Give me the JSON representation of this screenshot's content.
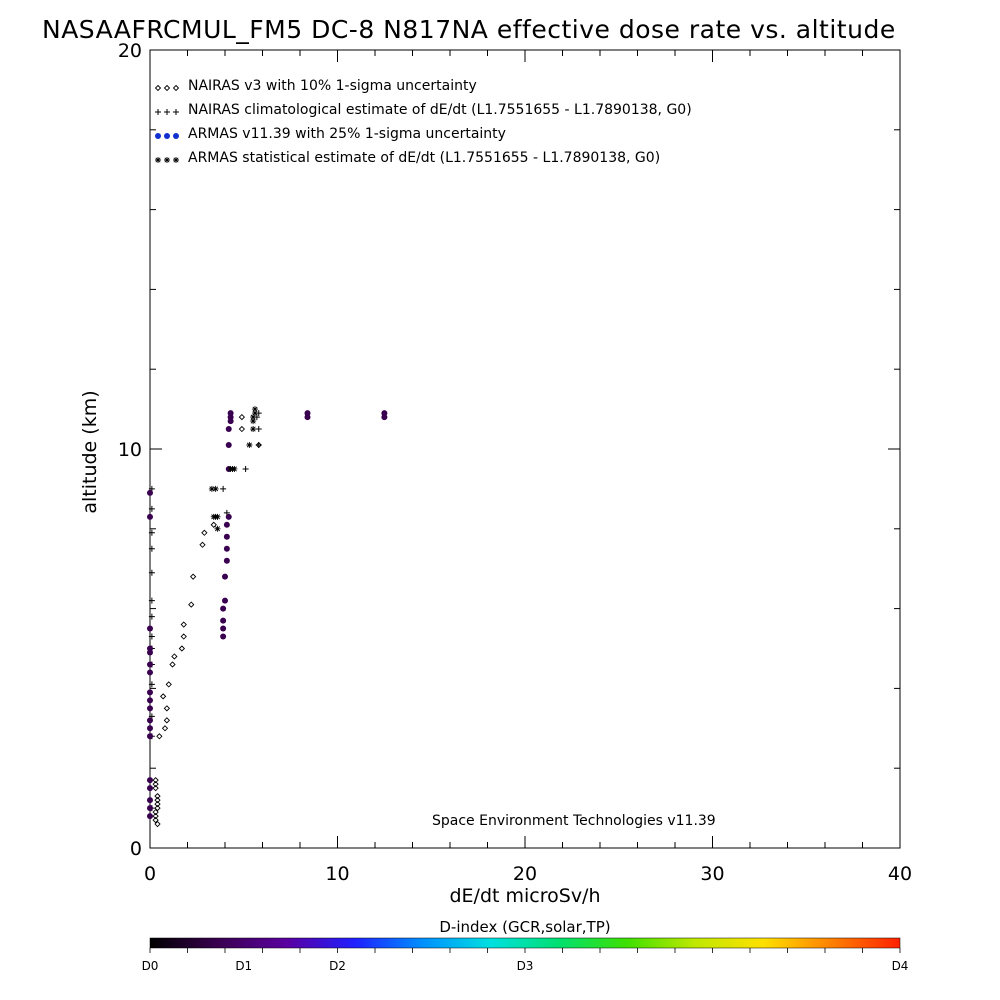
{
  "chart_data": {
    "type": "scatter",
    "title": "NASAAFRCMUL_FM5 DC-8   N817NA effective dose rate vs. altitude",
    "xlabel": "dE/dt microSv/h",
    "ylabel": "altitude (km)",
    "xlim": [
      0,
      40
    ],
    "ylim": [
      0,
      20
    ],
    "x_ticks": [
      "0",
      "10",
      "20",
      "30",
      "40"
    ],
    "y_ticks": [
      "0",
      "10",
      "20"
    ],
    "grid": false,
    "legend_placement": "top-left",
    "legend": [
      {
        "label": "NAIRAS v3 with 10% 1-sigma uncertainty",
        "marker": "diamond",
        "symbol": "◇◇◇"
      },
      {
        "label": "NAIRAS climatological estimate of dE/dt (L1.7551655 - L1.7890138, G0)",
        "marker": "plus",
        "symbol": "+++"
      },
      {
        "label": "ARMAS v11.39 with 25% 1-sigma uncertainty",
        "marker": "dot",
        "symbol": "●●●"
      },
      {
        "label": "ARMAS statistical estimate of dE/dt (L1.7551655 - L1.7890138, G0)",
        "marker": "asterisk",
        "symbol": "***"
      }
    ],
    "annotation": "Space Environment Technologies v11.39",
    "series": [
      {
        "name": "NAIRAS v3 with 10% 1-sigma uncertainty",
        "marker": "diamond",
        "color": "#000000",
        "x": [
          0.3,
          0.3,
          0.3,
          0.4,
          0.4,
          0.4,
          0.3,
          0.3,
          0.3,
          0.4,
          0.4,
          0.5,
          0.8,
          0.9,
          0.9,
          0.7,
          1.0,
          1.2,
          1.3,
          1.7,
          1.8,
          1.8,
          2.2,
          2.3,
          2.8,
          2.9,
          3.4,
          4.9,
          4.9,
          5.8
        ],
        "y": [
          1.7,
          1.6,
          1.5,
          1.3,
          1.1,
          1.0,
          0.9,
          0.8,
          0.7,
          0.6,
          1.2,
          2.8,
          3.0,
          3.2,
          3.5,
          3.8,
          4.1,
          4.6,
          4.8,
          5.0,
          5.3,
          5.6,
          6.1,
          6.8,
          7.6,
          7.9,
          8.1,
          10.8,
          10.5,
          10.1
        ]
      },
      {
        "name": "NAIRAS climatological estimate of dE/dt (L1.7551655 - L1.7890138, G0)",
        "marker": "plus",
        "color": "#000000",
        "x": [
          0.1,
          0.1,
          0.1,
          0.1,
          0.1,
          0.1,
          0.1,
          0.1,
          0.1,
          0.1,
          0.1,
          0.1,
          0.1,
          0.1,
          3.9,
          4.1,
          5.1,
          5.8,
          5.8,
          5.7,
          5.8
        ],
        "y": [
          2.8,
          3.3,
          4.1,
          4.6,
          5.0,
          5.3,
          5.8,
          6.2,
          6.9,
          7.5,
          7.9,
          8.5,
          9.0,
          1.0,
          9.0,
          8.4,
          9.5,
          10.1,
          10.5,
          10.8,
          10.9
        ]
      },
      {
        "name": "ARMAS v11.39 with 25% 1-sigma uncertainty",
        "marker": "dot",
        "color": "#3a0050",
        "x": [
          0.0,
          0.0,
          0.0,
          0.0,
          0.0,
          0.0,
          0.0,
          0.0,
          0.0,
          0.0,
          0.0,
          0.0,
          0.0,
          0.0,
          0.0,
          0.0,
          0.0,
          0.0,
          3.9,
          3.9,
          3.9,
          3.9,
          4.0,
          4.0,
          4.1,
          4.1,
          4.1,
          4.1,
          4.2,
          4.2,
          4.2,
          4.2,
          4.3,
          4.3,
          4.3,
          8.4,
          8.4,
          12.5,
          12.5
        ],
        "y": [
          0.8,
          1.0,
          1.2,
          1.5,
          1.7,
          2.8,
          3.0,
          3.2,
          3.5,
          3.7,
          3.9,
          4.4,
          4.6,
          4.9,
          5.0,
          5.5,
          8.3,
          8.9,
          5.3,
          5.5,
          5.7,
          6.0,
          6.2,
          6.8,
          7.2,
          7.5,
          7.8,
          8.1,
          8.3,
          9.5,
          10.1,
          10.5,
          10.7,
          10.8,
          10.9,
          10.8,
          10.9,
          10.8,
          10.9
        ]
      },
      {
        "name": "ARMAS statistical estimate of dE/dt (L1.7551655 - L1.7890138, G0)",
        "marker": "asterisk",
        "color": "#000000",
        "x": [
          3.3,
          3.4,
          3.5,
          3.6,
          3.5,
          3.6,
          4.3,
          4.4,
          4.5,
          5.3,
          5.5,
          5.5,
          5.5,
          5.6,
          5.6
        ],
        "y": [
          9.0,
          8.3,
          8.3,
          8.3,
          9.0,
          8.0,
          9.5,
          9.5,
          9.5,
          10.1,
          10.5,
          10.7,
          10.8,
          10.9,
          11.0
        ]
      }
    ],
    "colorbar": {
      "title": "D-index (GCR,solar,TP)",
      "ticks": [
        {
          "label": "D0",
          "frac": 0.0
        },
        {
          "label": "D1",
          "frac": 0.125
        },
        {
          "label": "D2",
          "frac": 0.25
        },
        {
          "label": "D3",
          "frac": 0.5
        },
        {
          "label": "D4",
          "frac": 1.0
        }
      ],
      "colors": [
        "#000000",
        "#3a0050",
        "#5a00a0",
        "#2020ff",
        "#0090ff",
        "#00e0e0",
        "#00e070",
        "#40e000",
        "#c0e800",
        "#ffe000",
        "#ff8000",
        "#ff2000"
      ]
    }
  }
}
